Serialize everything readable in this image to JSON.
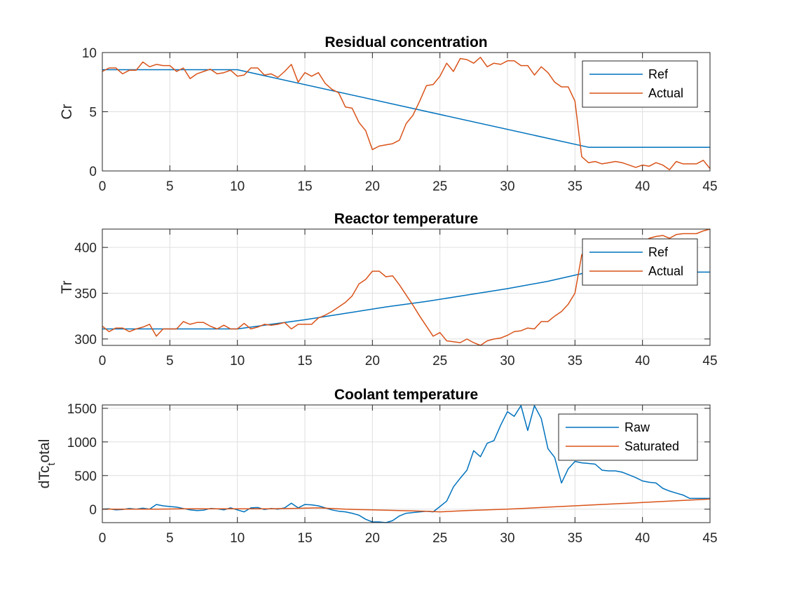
{
  "chart_data": [
    {
      "type": "line",
      "title": "Residual concentration",
      "xlabel": "",
      "ylabel": "Cr",
      "xlim": [
        0,
        45
      ],
      "ylim": [
        0,
        10
      ],
      "xticks": [
        0,
        5,
        10,
        15,
        20,
        25,
        30,
        35,
        40,
        45
      ],
      "yticks": [
        0,
        5,
        10
      ],
      "grid": true,
      "legend_position": "top-right",
      "series": [
        {
          "name": "Ref",
          "color": "#0072BD",
          "x": [
            0,
            10,
            36,
            45
          ],
          "y": [
            8.55,
            8.55,
            2.0,
            2.0
          ]
        },
        {
          "name": "Actual",
          "color": "#D95319",
          "x": [
            0,
            0.5,
            1,
            1.5,
            2,
            2.5,
            3,
            3.5,
            4,
            4.5,
            5,
            5.5,
            6,
            6.5,
            7,
            7.5,
            8,
            8.5,
            9,
            9.5,
            10,
            10.5,
            11,
            11.5,
            12,
            12.5,
            13,
            13.5,
            14,
            14.5,
            15,
            15.5,
            16,
            16.5,
            17,
            17.5,
            18,
            18.5,
            19,
            19.5,
            20,
            20.5,
            21,
            21.5,
            22,
            22.5,
            23,
            23.5,
            24,
            24.5,
            25,
            25.5,
            26,
            26.5,
            27,
            27.5,
            28,
            28.5,
            29,
            29.5,
            30,
            30.5,
            31,
            31.5,
            32,
            32.5,
            33,
            33.5,
            34,
            34.5,
            35,
            35.5,
            36,
            36.5,
            37,
            37.5,
            38,
            38.5,
            39,
            39.5,
            40,
            40.5,
            41,
            41.5,
            42,
            42.5,
            43,
            43.5,
            44,
            44.5,
            45
          ],
          "y": [
            8.4,
            8.7,
            8.7,
            8.2,
            8.5,
            8.5,
            9.2,
            8.8,
            9.0,
            8.9,
            8.9,
            8.4,
            8.7,
            7.8,
            8.2,
            8.4,
            8.6,
            8.2,
            8.3,
            8.5,
            8.0,
            8.1,
            8.7,
            8.7,
            8.1,
            8.2,
            7.9,
            8.4,
            9.0,
            7.5,
            8.3,
            8.0,
            8.3,
            7.4,
            6.9,
            6.6,
            5.4,
            5.3,
            4.1,
            3.4,
            1.8,
            2.1,
            2.2,
            2.3,
            2.6,
            4.0,
            4.7,
            5.9,
            7.2,
            7.3,
            8.0,
            9.1,
            8.4,
            9.5,
            9.4,
            9.1,
            9.6,
            8.8,
            9.1,
            9.0,
            9.3,
            9.3,
            8.9,
            8.9,
            8.1,
            8.8,
            8.3,
            7.5,
            7.1,
            7.1,
            5.9,
            1.2,
            0.7,
            0.8,
            0.6,
            0.7,
            0.8,
            0.7,
            0.5,
            0.3,
            0.5,
            0.4,
            0.7,
            0.5,
            0.1,
            0.8,
            0.6,
            0.6,
            0.6,
            0.9,
            0.2
          ]
        }
      ]
    },
    {
      "type": "line",
      "title": "Reactor temperature",
      "xlabel": "",
      "ylabel": "Tr",
      "xlim": [
        0,
        45
      ],
      "ylim": [
        293,
        420
      ],
      "xticks": [
        0,
        5,
        10,
        15,
        20,
        25,
        30,
        35,
        40,
        45
      ],
      "yticks": [
        300,
        350,
        400
      ],
      "grid": true,
      "legend_position": "top-right",
      "series": [
        {
          "name": "Ref",
          "color": "#0072BD",
          "x": [
            0,
            10,
            12,
            15,
            18,
            21,
            24,
            27,
            30,
            33,
            36,
            45
          ],
          "y": [
            311,
            311,
            315,
            321,
            328,
            335,
            341,
            348,
            355,
            363,
            373,
            373
          ]
        },
        {
          "name": "Actual",
          "color": "#D95319",
          "x": [
            0,
            0.5,
            1,
            1.5,
            2,
            2.5,
            3,
            3.5,
            4,
            4.5,
            5,
            5.5,
            6,
            6.5,
            7,
            7.5,
            8,
            8.5,
            9,
            9.5,
            10,
            10.5,
            11,
            11.5,
            12,
            12.5,
            13,
            13.5,
            14,
            14.5,
            15,
            15.5,
            16,
            16.5,
            17,
            17.5,
            18,
            18.5,
            19,
            19.5,
            20,
            20.5,
            21,
            21.5,
            22,
            22.5,
            23,
            23.5,
            24,
            24.5,
            25,
            25.5,
            26,
            26.5,
            27,
            27.5,
            28,
            28.5,
            29,
            29.5,
            30,
            30.5,
            31,
            31.5,
            32,
            32.5,
            33,
            33.5,
            34,
            34.5,
            35,
            35.5,
            36,
            36.5,
            37,
            37.5,
            38,
            38.5,
            39,
            39.5,
            40,
            40.5,
            41,
            41.5,
            42,
            42.5,
            43,
            43.5,
            44,
            44.5,
            45
          ],
          "y": [
            314,
            308,
            312,
            312,
            308,
            311,
            313,
            316,
            303,
            311,
            311,
            311,
            319,
            316,
            318,
            318,
            314,
            311,
            315,
            311,
            311,
            317,
            311,
            313,
            316,
            315,
            316,
            318,
            311,
            316,
            316,
            316,
            323,
            326,
            330,
            335,
            340,
            347,
            360,
            365,
            374,
            374,
            368,
            369,
            359,
            348,
            337,
            325,
            314,
            303,
            307,
            298,
            297,
            296,
            300,
            296,
            293,
            298,
            300,
            301,
            304,
            308,
            309,
            312,
            311,
            319,
            319,
            325,
            330,
            338,
            350,
            392,
            398,
            401,
            401,
            405,
            405,
            406,
            405,
            405,
            405,
            410,
            412,
            413,
            410,
            414,
            415,
            415,
            415,
            418,
            420
          ]
        }
      ]
    },
    {
      "type": "line",
      "title": "Coolant temperature",
      "xlabel": "",
      "ylabel": "dTc_total",
      "ylabel_main": "dTc",
      "ylabel_sub": "t",
      "ylabel_rest": "otal",
      "xlim": [
        0,
        45
      ],
      "ylim": [
        -200,
        1550
      ],
      "xticks": [
        0,
        5,
        10,
        15,
        20,
        25,
        30,
        35,
        40,
        45
      ],
      "yticks": [
        0,
        500,
        1000,
        1500
      ],
      "grid": true,
      "legend_position": "top-right",
      "series": [
        {
          "name": "Raw",
          "color": "#0072BD",
          "x": [
            0,
            0.5,
            1,
            1.5,
            2,
            2.5,
            3,
            3.5,
            4,
            4.5,
            5,
            5.5,
            6,
            6.5,
            7,
            7.5,
            8,
            8.5,
            9,
            9.5,
            10,
            10.5,
            11,
            11.5,
            12,
            12.5,
            13,
            13.5,
            14,
            14.5,
            15,
            15.5,
            16,
            16.5,
            17,
            17.5,
            18,
            18.5,
            19,
            19.5,
            20,
            20.5,
            21,
            21.5,
            22,
            22.5,
            23,
            23.5,
            24,
            24.5,
            25,
            25.5,
            26,
            26.5,
            27,
            27.5,
            28,
            28.5,
            29,
            29.5,
            30,
            30.5,
            31,
            31.5,
            32,
            32.5,
            33,
            33.5,
            34,
            34.5,
            35,
            35.5,
            36,
            36.5,
            37,
            37.5,
            38,
            38.5,
            39,
            39.5,
            40,
            40.5,
            41,
            41.5,
            42,
            42.5,
            43,
            43.5,
            44,
            44.5,
            45
          ],
          "y": [
            0,
            5,
            -10,
            -5,
            10,
            0,
            15,
            0,
            70,
            50,
            40,
            30,
            10,
            -10,
            -20,
            -15,
            10,
            5,
            -10,
            20,
            -10,
            -40,
            20,
            25,
            -5,
            10,
            0,
            20,
            90,
            20,
            70,
            65,
            50,
            20,
            -10,
            -30,
            -40,
            -60,
            -90,
            -150,
            -190,
            -190,
            -200,
            -170,
            -100,
            -60,
            -50,
            -40,
            -30,
            -40,
            40,
            120,
            330,
            460,
            580,
            870,
            780,
            980,
            1020,
            1250,
            1450,
            1380,
            1540,
            1170,
            1540,
            1350,
            900,
            770,
            390,
            600,
            710,
            690,
            680,
            670,
            580,
            570,
            570,
            550,
            510,
            470,
            420,
            400,
            390,
            310,
            270,
            240,
            210,
            160,
            160,
            160,
            160
          ]
        },
        {
          "name": "Saturated",
          "color": "#D95319",
          "x": [
            0,
            2,
            4,
            6,
            8,
            10,
            12,
            14,
            16,
            18,
            20,
            22,
            24,
            25,
            27,
            30,
            33,
            36,
            39,
            42,
            45
          ],
          "y": [
            0,
            0,
            0,
            5,
            5,
            5,
            5,
            10,
            20,
            0,
            -10,
            -20,
            -30,
            -40,
            -20,
            0,
            30,
            60,
            90,
            120,
            150
          ]
        }
      ]
    }
  ]
}
